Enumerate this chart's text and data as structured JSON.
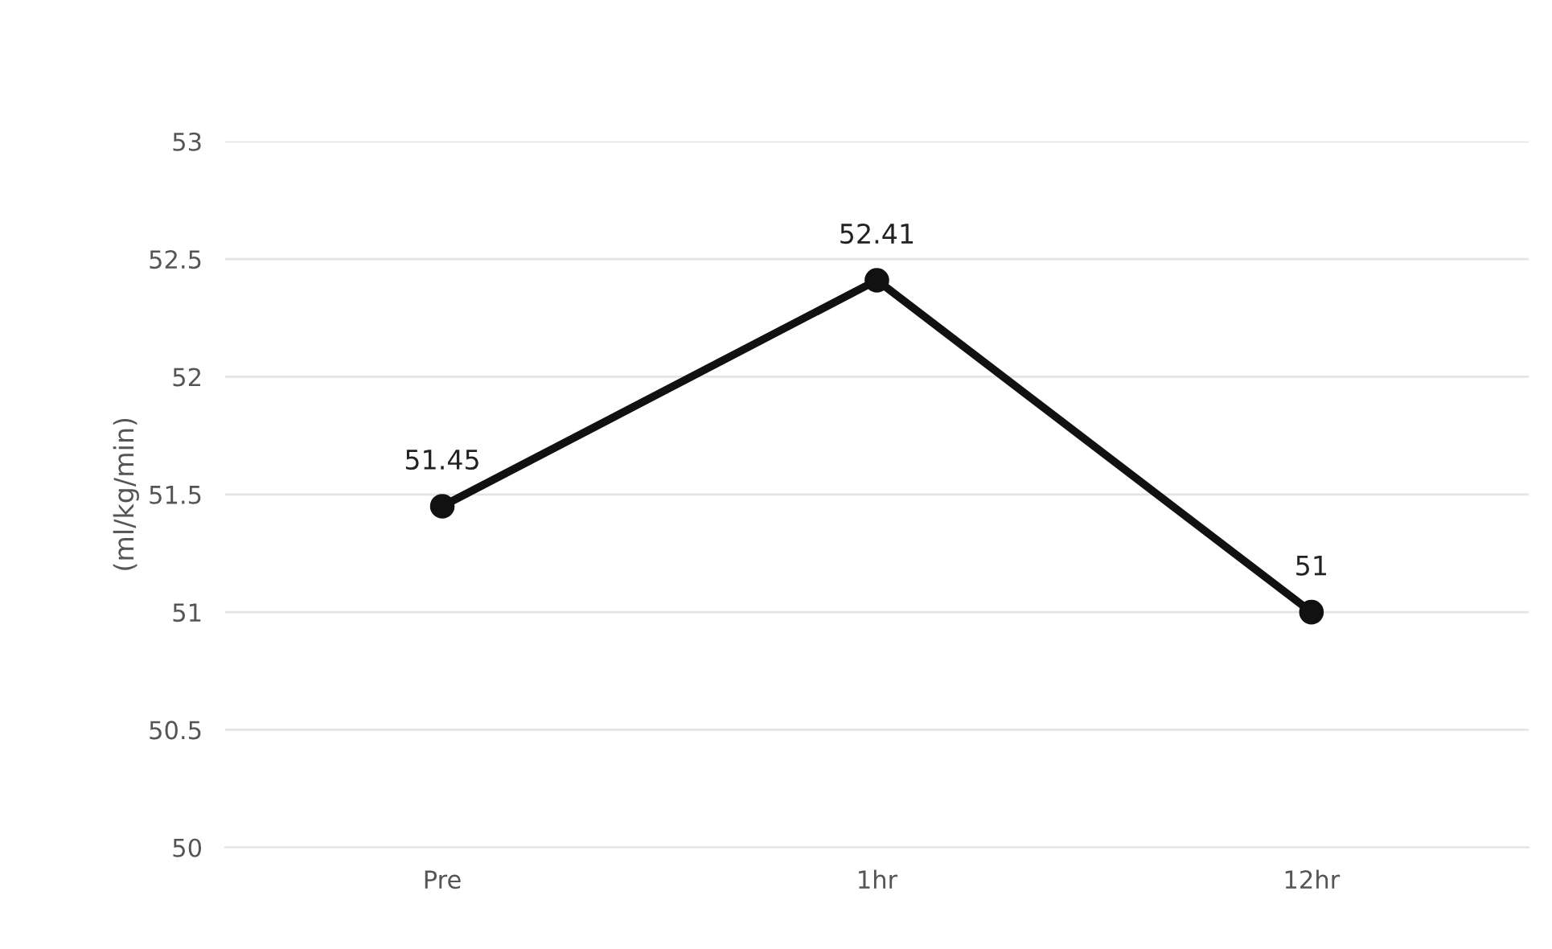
{
  "chart_data": {
    "type": "line",
    "ylabel": "(ml/kg/min)",
    "categories": [
      "Pre",
      "1hr",
      "12hr"
    ],
    "series": [
      {
        "color": "#111111",
        "values": [
          51.45,
          52.41,
          51
        ]
      }
    ],
    "ylim": [
      50,
      53
    ],
    "yticks": [
      50,
      50.5,
      51,
      51.5,
      52,
      52.5,
      53
    ],
    "grid": "y",
    "marker": "circle",
    "line_style": "solid",
    "data_labels": true
  }
}
